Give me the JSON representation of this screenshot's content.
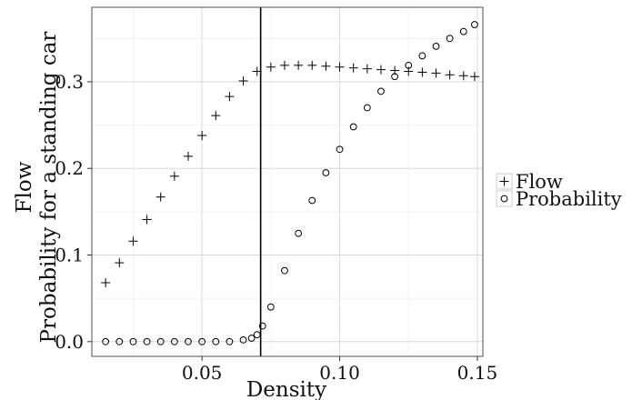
{
  "chart_data": {
    "type": "scatter",
    "xlabel": "Density",
    "ylabel_lines": [
      "Flow",
      "Probability for a standing car"
    ],
    "xlim": [
      0.01,
      0.152
    ],
    "ylim": [
      -0.017,
      0.386
    ],
    "x_ticks": [
      {
        "value": 0.05,
        "label": "0.05"
      },
      {
        "value": 0.1,
        "label": "0.10"
      },
      {
        "value": 0.15,
        "label": "0.15"
      }
    ],
    "y_ticks": [
      {
        "value": 0.0,
        "label": "0.0"
      },
      {
        "value": 0.1,
        "label": "0.1"
      },
      {
        "value": 0.2,
        "label": "0.2"
      },
      {
        "value": 0.3,
        "label": "0.3"
      }
    ],
    "grid": true,
    "vline_x": 0.0713,
    "legend": {
      "position": "right",
      "entries": [
        {
          "marker": "plus",
          "label": "Flow"
        },
        {
          "marker": "circle",
          "label": "Probability"
        }
      ]
    },
    "series": [
      {
        "name": "Flow",
        "marker": "plus",
        "points": [
          [
            0.015,
            0.068
          ],
          [
            0.02,
            0.091
          ],
          [
            0.025,
            0.116
          ],
          [
            0.03,
            0.141
          ],
          [
            0.035,
            0.167
          ],
          [
            0.04,
            0.191
          ],
          [
            0.045,
            0.214
          ],
          [
            0.05,
            0.238
          ],
          [
            0.055,
            0.261
          ],
          [
            0.06,
            0.283
          ],
          [
            0.065,
            0.301
          ],
          [
            0.07,
            0.312
          ],
          [
            0.075,
            0.317
          ],
          [
            0.08,
            0.319
          ],
          [
            0.085,
            0.319
          ],
          [
            0.09,
            0.319
          ],
          [
            0.095,
            0.318
          ],
          [
            0.1,
            0.317
          ],
          [
            0.105,
            0.316
          ],
          [
            0.11,
            0.315
          ],
          [
            0.115,
            0.314
          ],
          [
            0.12,
            0.313
          ],
          [
            0.125,
            0.312
          ],
          [
            0.13,
            0.311
          ],
          [
            0.135,
            0.31
          ],
          [
            0.14,
            0.308
          ],
          [
            0.145,
            0.307
          ],
          [
            0.149,
            0.306
          ]
        ]
      },
      {
        "name": "Probability",
        "marker": "circle",
        "points": [
          [
            0.015,
            0.0
          ],
          [
            0.02,
            0.0
          ],
          [
            0.025,
            0.0
          ],
          [
            0.03,
            0.0
          ],
          [
            0.035,
            0.0
          ],
          [
            0.04,
            0.0
          ],
          [
            0.045,
            0.0
          ],
          [
            0.05,
            0.0
          ],
          [
            0.055,
            0.0
          ],
          [
            0.06,
            0.0
          ],
          [
            0.065,
            0.002
          ],
          [
            0.068,
            0.004
          ],
          [
            0.07,
            0.008
          ],
          [
            0.072,
            0.018
          ],
          [
            0.075,
            0.04
          ],
          [
            0.08,
            0.082
          ],
          [
            0.085,
            0.125
          ],
          [
            0.09,
            0.163
          ],
          [
            0.095,
            0.195
          ],
          [
            0.1,
            0.222
          ],
          [
            0.105,
            0.248
          ],
          [
            0.11,
            0.27
          ],
          [
            0.115,
            0.289
          ],
          [
            0.12,
            0.306
          ],
          [
            0.125,
            0.319
          ],
          [
            0.13,
            0.33
          ],
          [
            0.135,
            0.341
          ],
          [
            0.14,
            0.35
          ],
          [
            0.145,
            0.358
          ],
          [
            0.149,
            0.366
          ]
        ]
      }
    ]
  }
}
